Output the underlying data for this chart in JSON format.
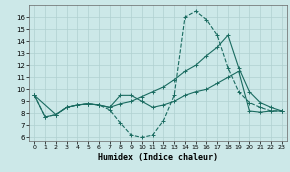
{
  "xlabel": "Humidex (Indice chaleur)",
  "background_color": "#cce8e8",
  "grid_color": "#b0d0d0",
  "line_color": "#1a6b60",
  "xlim": [
    -0.5,
    23.5
  ],
  "ylim": [
    5.7,
    17.0
  ],
  "yticks": [
    6,
    7,
    8,
    9,
    10,
    11,
    12,
    13,
    14,
    15,
    16
  ],
  "xticks": [
    0,
    1,
    2,
    3,
    4,
    5,
    6,
    7,
    8,
    9,
    10,
    11,
    12,
    13,
    14,
    15,
    16,
    17,
    18,
    19,
    20,
    21,
    22,
    23
  ],
  "line1_x": [
    0,
    1,
    2,
    3,
    4,
    5,
    6,
    7,
    8,
    9,
    10,
    11,
    12,
    13,
    14,
    15,
    16,
    17,
    18,
    19,
    20,
    21,
    22,
    23
  ],
  "line1_y": [
    9.5,
    7.7,
    7.9,
    8.5,
    8.7,
    8.8,
    8.7,
    8.3,
    7.2,
    6.2,
    6.0,
    6.2,
    7.4,
    9.5,
    16.0,
    16.5,
    15.8,
    14.5,
    11.8,
    9.8,
    8.9,
    8.5,
    8.2,
    8.2
  ],
  "line2_x": [
    0,
    1,
    2,
    3,
    4,
    5,
    6,
    7,
    8,
    9,
    10,
    11,
    12,
    13,
    14,
    15,
    16,
    17,
    18,
    19,
    20,
    21,
    22,
    23
  ],
  "line2_y": [
    9.5,
    7.7,
    7.9,
    8.5,
    8.7,
    8.8,
    8.7,
    8.5,
    8.8,
    9.0,
    9.4,
    9.8,
    10.2,
    10.8,
    11.5,
    12.0,
    12.8,
    13.5,
    14.5,
    11.8,
    9.8,
    8.9,
    8.5,
    8.2
  ],
  "line3_x": [
    0,
    2,
    3,
    4,
    5,
    6,
    7,
    8,
    9,
    10,
    11,
    12,
    13,
    14,
    15,
    16,
    17,
    18,
    19,
    20,
    21,
    22,
    23
  ],
  "line3_y": [
    9.5,
    7.9,
    8.5,
    8.7,
    8.8,
    8.7,
    8.5,
    9.5,
    9.5,
    9.0,
    8.5,
    8.7,
    9.0,
    9.5,
    9.8,
    10.0,
    10.5,
    11.0,
    11.5,
    8.2,
    8.1,
    8.2,
    8.2
  ]
}
